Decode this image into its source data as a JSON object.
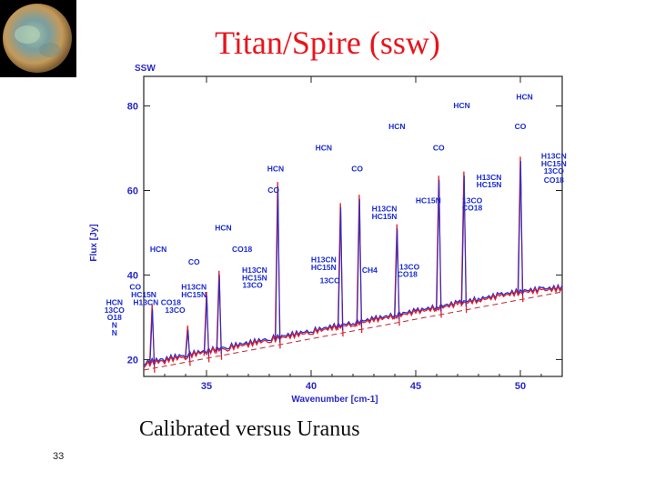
{
  "slide": {
    "title": "Titan/Spire (ssw)",
    "caption": "Calibrated versus Uranus",
    "number": "33"
  },
  "colors": {
    "title": "#e8141b",
    "axes_text": "#2828c8",
    "line_label": "#1a2bd0",
    "series_blue": "#1f2fd6",
    "series_red": "#e0202a",
    "series_dashed": "#b8283a"
  },
  "chart_data": {
    "type": "line",
    "corner_label": "SSW",
    "xlabel": "Wavenumber [cm-1]",
    "ylabel": "Flux [Jy]",
    "xlim": [
      32.0,
      52.0
    ],
    "ylim": [
      16.0,
      87.0
    ],
    "xticks": [
      35,
      40,
      45,
      50
    ],
    "yticks": [
      20,
      40,
      60,
      80
    ],
    "grid": false,
    "series": [
      {
        "color": "blue",
        "x": [
          32.0,
          33.0,
          34.0,
          35.0,
          36.0,
          37.0,
          38.0,
          39.0,
          40.0,
          41.0,
          42.0,
          43.0,
          44.0,
          45.0,
          46.0,
          47.0,
          48.0,
          49.0,
          50.0,
          51.0,
          52.0
        ],
        "y": [
          18.5,
          19.5,
          20.5,
          21.5,
          22.5,
          23.5,
          24.5,
          25.5,
          26.5,
          27.5,
          28.5,
          29.5,
          30.5,
          31.5,
          32.5,
          33.5,
          34.5,
          35.5,
          36.5,
          37.0,
          37.5
        ]
      },
      {
        "color": "red",
        "x": [
          32.0,
          33.0,
          34.0,
          35.0,
          36.0,
          37.0,
          38.0,
          39.0,
          40.0,
          41.0,
          42.0,
          43.0,
          44.0,
          45.0,
          46.0,
          47.0,
          48.0,
          49.0,
          50.0,
          51.0,
          52.0
        ],
        "y": [
          18.0,
          19.0,
          20.0,
          21.2,
          22.0,
          23.0,
          24.0,
          25.0,
          26.0,
          27.0,
          28.0,
          29.0,
          30.0,
          31.0,
          32.0,
          33.0,
          34.0,
          35.0,
          36.0,
          36.5,
          37.0
        ]
      },
      {
        "color": "dashed",
        "x": [
          32.0,
          52.0
        ],
        "y": [
          17.5,
          36.0
        ]
      }
    ],
    "peaks": [
      {
        "x": 32.4,
        "top": 33
      },
      {
        "x": 34.1,
        "top": 28
      },
      {
        "x": 35.0,
        "top": 36
      },
      {
        "x": 35.6,
        "top": 41
      },
      {
        "x": 38.4,
        "top": 62
      },
      {
        "x": 41.4,
        "top": 57
      },
      {
        "x": 42.3,
        "top": 59
      },
      {
        "x": 44.1,
        "top": 52
      },
      {
        "x": 46.1,
        "top": 63.5
      },
      {
        "x": 47.3,
        "top": 64.5
      },
      {
        "x": 50.0,
        "top": 68
      }
    ],
    "annotations": [
      {
        "text": "HCN",
        "x": 32.7,
        "y": 45.5
      },
      {
        "text": "CO",
        "x": 34.4,
        "y": 42.5
      },
      {
        "text": "HCN",
        "x": 35.8,
        "y": 50.5
      },
      {
        "text": "CO18",
        "x": 36.7,
        "y": 45.5
      },
      {
        "text": "H13CN",
        "x": 34.4,
        "y": 36.5
      },
      {
        "text": "HC15N",
        "x": 34.4,
        "y": 34.7
      },
      {
        "text": "H13CN",
        "x": 37.3,
        "y": 40.5
      },
      {
        "text": "HC15N",
        "x": 37.3,
        "y": 38.7
      },
      {
        "text": "13CO",
        "x": 37.2,
        "y": 37.0
      },
      {
        "text": "HCN",
        "x": 38.3,
        "y": 64.5
      },
      {
        "text": "CO",
        "x": 38.2,
        "y": 59.5
      },
      {
        "text": "HCN",
        "x": 40.6,
        "y": 69.5
      },
      {
        "text": "CO",
        "x": 42.2,
        "y": 64.5
      },
      {
        "text": "H13CN",
        "x": 40.6,
        "y": 43.0
      },
      {
        "text": "HC15N",
        "x": 40.6,
        "y": 41.2
      },
      {
        "text": "13CO",
        "x": 40.9,
        "y": 38.0
      },
      {
        "text": "CH4",
        "x": 42.8,
        "y": 40.5
      },
      {
        "text": "H13CN",
        "x": 43.5,
        "y": 55.0
      },
      {
        "text": "HC15N",
        "x": 43.5,
        "y": 53.2
      },
      {
        "text": "13CO",
        "x": 44.7,
        "y": 41.3
      },
      {
        "text": "CO18",
        "x": 44.6,
        "y": 39.6
      },
      {
        "text": "HCN",
        "x": 44.1,
        "y": 74.5
      },
      {
        "text": "CO",
        "x": 46.1,
        "y": 69.5
      },
      {
        "text": "HC15N",
        "x": 45.6,
        "y": 57.0
      },
      {
        "text": "13CO",
        "x": 47.7,
        "y": 57.0
      },
      {
        "text": "CO18",
        "x": 47.7,
        "y": 55.3
      },
      {
        "text": "HCN",
        "x": 47.2,
        "y": 79.5
      },
      {
        "text": "H13CN",
        "x": 48.5,
        "y": 62.5
      },
      {
        "text": "HC15N",
        "x": 48.5,
        "y": 60.7
      },
      {
        "text": "HCN",
        "x": 50.2,
        "y": 81.5
      },
      {
        "text": "CO",
        "x": 50.0,
        "y": 74.5
      },
      {
        "text": "H13CN",
        "x": 51.6,
        "y": 67.5
      },
      {
        "text": "HC15N",
        "x": 51.6,
        "y": 65.7
      },
      {
        "text": "13CO",
        "x": 51.6,
        "y": 64.0
      },
      {
        "text": "CO18",
        "x": 51.6,
        "y": 61.8
      },
      {
        "text": "CO",
        "x": 31.6,
        "y": 36.5
      },
      {
        "text": "HC15N",
        "x": 32.0,
        "y": 34.7
      },
      {
        "text": "H13CN",
        "x": 32.1,
        "y": 32.9
      },
      {
        "text": "CO18",
        "x": 33.3,
        "y": 32.9
      },
      {
        "text": "13CO",
        "x": 33.5,
        "y": 31.1
      },
      {
        "text": "HCN",
        "x": 30.6,
        "y": 32.9
      },
      {
        "text": "13CO",
        "x": 30.6,
        "y": 31.1
      },
      {
        "text": "O18",
        "x": 30.6,
        "y": 29.3
      },
      {
        "text": "N",
        "x": 30.6,
        "y": 27.5
      },
      {
        "text": "N",
        "x": 30.6,
        "y": 25.7
      }
    ]
  }
}
